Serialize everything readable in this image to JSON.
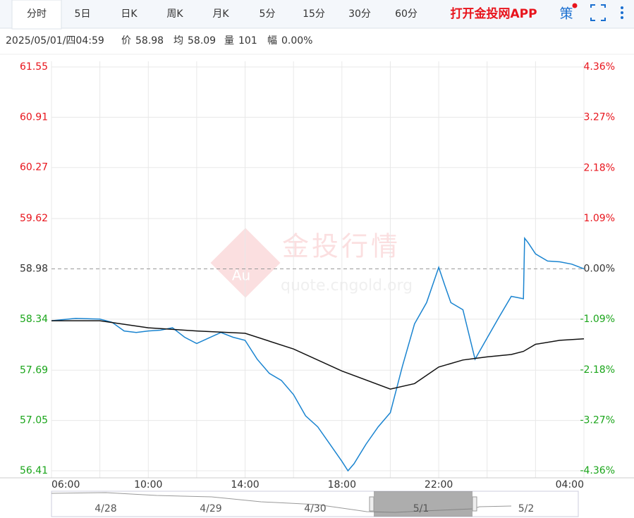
{
  "toolbar": {
    "tabs": [
      "分时",
      "5日",
      "日K",
      "周K",
      "月K",
      "5分",
      "15分",
      "30分",
      "60分"
    ],
    "active": 0,
    "app_link": "打开金投网APP",
    "strategy": "策"
  },
  "info": {
    "time": "2025/05/01/四04:59",
    "items": [
      {
        "label": "价",
        "value": "58.98"
      },
      {
        "label": "均",
        "value": "58.09"
      },
      {
        "label": "量",
        "value": "101"
      },
      {
        "label": "幅",
        "value": "0.00%"
      }
    ]
  },
  "watermark": {
    "brand": "金投行情",
    "url": "quote.cngold.org",
    "logo": "Au"
  },
  "chart_data": {
    "type": "line",
    "xlim": [
      6,
      28
    ],
    "xticks": [
      {
        "value": 6,
        "label": "06:00"
      },
      {
        "value": 10,
        "label": "10:00"
      },
      {
        "value": 14,
        "label": "14:00"
      },
      {
        "value": 18,
        "label": "18:00"
      },
      {
        "value": 22,
        "label": "22:00"
      },
      {
        "value": 28,
        "label": "04:00"
      }
    ],
    "ylim": [
      56.41,
      61.55
    ],
    "yticks": [
      61.55,
      60.91,
      60.27,
      59.62,
      58.98,
      58.34,
      57.69,
      57.05,
      56.41
    ],
    "y2lim": [
      -4.36,
      4.36
    ],
    "y2ticks": [
      {
        "value": 4.36,
        "label": "4.36%"
      },
      {
        "value": 3.27,
        "label": "3.27%"
      },
      {
        "value": 2.18,
        "label": "2.18%"
      },
      {
        "value": 1.09,
        "label": "1.09%"
      },
      {
        "value": 0,
        "label": "0.00%"
      },
      {
        "value": -1.09,
        "label": "-1.09%"
      },
      {
        "value": -2.18,
        "label": "-2.18%"
      },
      {
        "value": -3.27,
        "label": "-3.27%"
      },
      {
        "value": -4.36,
        "label": "-4.36%"
      }
    ],
    "reference": 58.98,
    "up_color": "#e8141c",
    "down_color": "#1aa51a",
    "grid": true,
    "series": [
      {
        "name": "价",
        "color": "#1a84d0",
        "x": [
          6,
          7,
          8,
          8.5,
          9,
          9.5,
          10,
          10.5,
          11,
          11.5,
          12,
          12.5,
          13,
          13.5,
          14,
          14.5,
          15,
          15.5,
          16,
          16.5,
          17,
          17.5,
          18,
          18.25,
          18.5,
          19,
          19.5,
          20,
          20.5,
          21,
          21.5,
          22,
          22.25,
          22.5,
          23,
          23.5,
          24,
          24.5,
          25,
          25.5,
          25.55,
          25.7,
          26,
          26.5,
          27,
          27.5,
          28
        ],
        "values": [
          58.32,
          58.35,
          58.34,
          58.3,
          58.19,
          58.17,
          58.19,
          58.2,
          58.23,
          58.11,
          58.03,
          58.1,
          58.17,
          58.11,
          58.07,
          57.83,
          57.65,
          57.56,
          57.38,
          57.11,
          56.97,
          56.75,
          56.53,
          56.41,
          56.5,
          56.75,
          56.97,
          57.15,
          57.74,
          58.28,
          58.55,
          59.0,
          58.77,
          58.55,
          58.46,
          57.83,
          58.1,
          58.37,
          58.63,
          58.6,
          59.37,
          59.31,
          59.17,
          59.08,
          59.07,
          59.04,
          58.98
        ]
      },
      {
        "name": "均",
        "color": "#111111",
        "x": [
          6,
          8,
          10,
          12,
          14,
          16,
          18,
          20,
          21,
          22,
          23,
          24,
          25,
          25.5,
          26,
          27,
          28
        ],
        "values": [
          58.32,
          58.32,
          58.23,
          58.19,
          58.16,
          57.96,
          57.68,
          57.45,
          57.52,
          57.73,
          57.82,
          57.86,
          57.89,
          57.93,
          58.02,
          58.07,
          58.09
        ]
      }
    ]
  },
  "navigator": {
    "labels": [
      "4/28",
      "4/29",
      "4/30",
      "5/1",
      "5/2"
    ]
  }
}
